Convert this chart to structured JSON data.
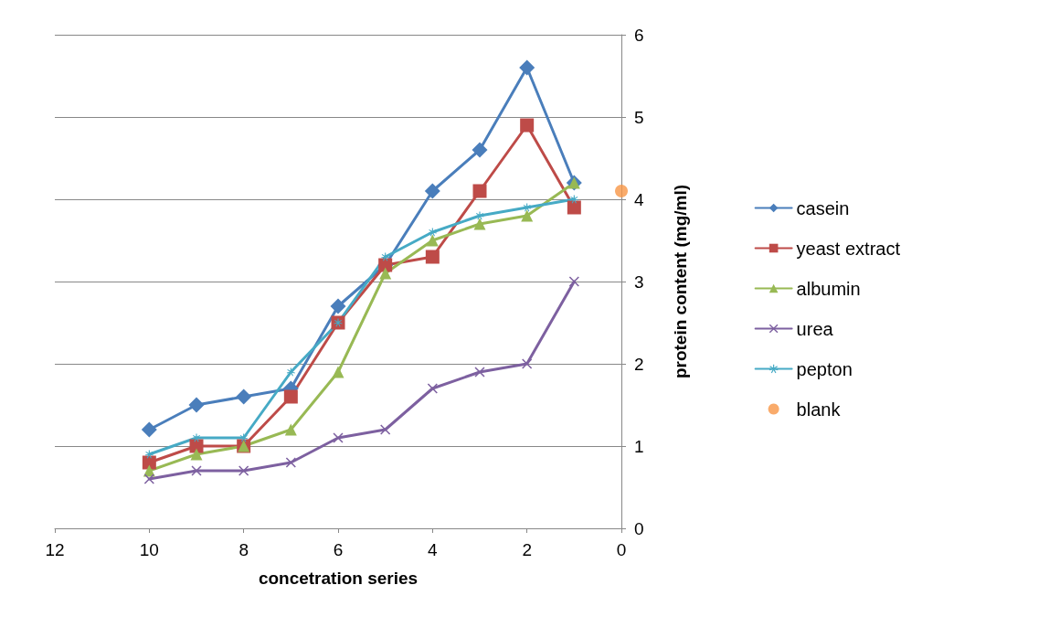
{
  "chart_data": {
    "type": "line",
    "xlabel": "concetration series",
    "ylabel": "protein content (mg/ml)",
    "xlim": [
      12,
      0
    ],
    "xticks": [
      12,
      10,
      8,
      6,
      4,
      2,
      0
    ],
    "ylim": [
      0,
      6
    ],
    "yticks": [
      0,
      1,
      2,
      3,
      4,
      5,
      6
    ],
    "grid": "y",
    "legend": "right",
    "line_style": "solid",
    "x": [
      10,
      9,
      8,
      7,
      6,
      5,
      4,
      3,
      2,
      1
    ],
    "series": [
      {
        "name": "casein",
        "color": "#4a7ebb",
        "marker": "diamond",
        "values": [
          1.2,
          1.5,
          1.6,
          1.7,
          2.7,
          3.2,
          4.1,
          4.6,
          5.6,
          4.2
        ]
      },
      {
        "name": "yeast extract",
        "color": "#be4b48",
        "marker": "square",
        "values": [
          0.8,
          1.0,
          1.0,
          1.6,
          2.5,
          3.2,
          3.3,
          4.1,
          4.9,
          3.9
        ]
      },
      {
        "name": "albumin",
        "color": "#98b954",
        "marker": "triangle",
        "values": [
          0.7,
          0.9,
          1.0,
          1.2,
          1.9,
          3.1,
          3.5,
          3.7,
          3.8,
          4.2
        ]
      },
      {
        "name": "urea",
        "color": "#7d60a0",
        "marker": "cross",
        "values": [
          0.6,
          0.7,
          0.7,
          0.8,
          1.1,
          1.2,
          1.7,
          1.9,
          2.0,
          3.0
        ]
      },
      {
        "name": "pepton",
        "color": "#46aac5",
        "marker": "star",
        "values": [
          0.9,
          1.1,
          1.1,
          1.9,
          2.5,
          3.3,
          3.6,
          3.8,
          3.9,
          4.0
        ]
      },
      {
        "name": "blank",
        "color": "#f79646",
        "marker": "circle",
        "type": "scatter",
        "x": [
          0
        ],
        "values": [
          4.1
        ]
      }
    ]
  }
}
